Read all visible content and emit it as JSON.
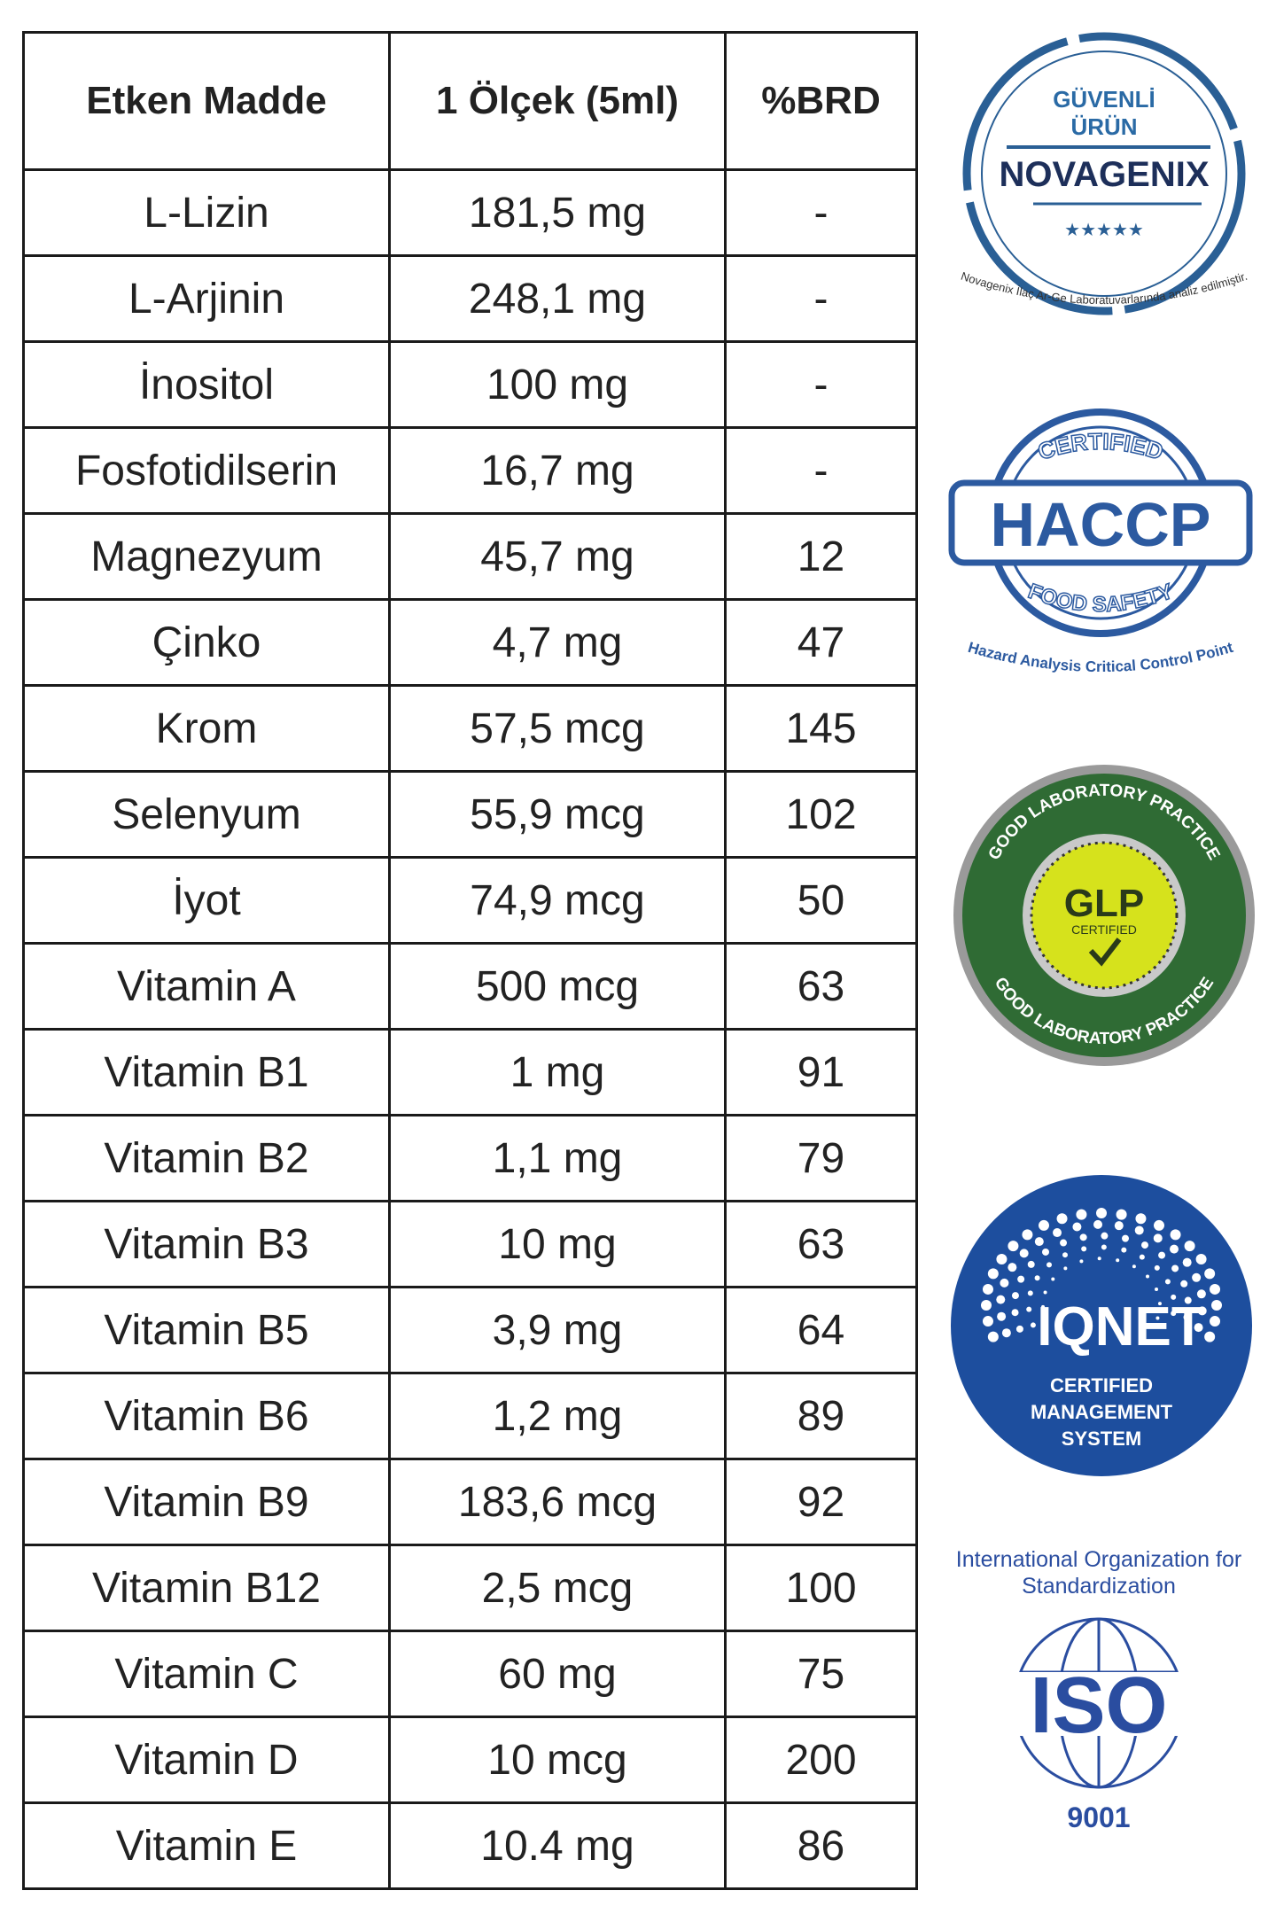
{
  "table": {
    "headers": [
      "Etken Madde",
      "1 Ölçek (5ml)",
      "%BRD"
    ],
    "rows": [
      [
        "L-Lizin",
        "181,5 mg",
        "-"
      ],
      [
        "L-Arjinin",
        "248,1 mg",
        "-"
      ],
      [
        "İnositol",
        "100 mg",
        "-"
      ],
      [
        "Fosfotidilserin",
        "16,7 mg",
        "-"
      ],
      [
        "Magnezyum",
        "45,7 mg",
        "12"
      ],
      [
        "Çinko",
        "4,7 mg",
        "47"
      ],
      [
        "Krom",
        "57,5 mcg",
        "145"
      ],
      [
        "Selenyum",
        "55,9 mcg",
        "102"
      ],
      [
        "İyot",
        "74,9 mcg",
        "50"
      ],
      [
        "Vitamin A",
        "500 mcg",
        "63"
      ],
      [
        "Vitamin B1",
        "1 mg",
        "91"
      ],
      [
        "Vitamin B2",
        "1,1 mg",
        "79"
      ],
      [
        "Vitamin B3",
        "10 mg",
        "63"
      ],
      [
        "Vitamin B5",
        "3,9 mg",
        "64"
      ],
      [
        "Vitamin B6",
        "1,2 mg",
        "89"
      ],
      [
        "Vitamin B9",
        "183,6 mcg",
        "92"
      ],
      [
        "Vitamin B12",
        "2,5 mcg",
        "100"
      ],
      [
        "Vitamin C",
        "60 mg",
        "75"
      ],
      [
        "Vitamin D",
        "10 mcg",
        "200"
      ],
      [
        "Vitamin E",
        "10.4 mg",
        "86"
      ]
    ]
  },
  "logos": {
    "novagenix": {
      "line1": "GÜVENLİ",
      "line2": "ÜRÜN",
      "brand": "NOVAGENIX",
      "stars": "★★★★★",
      "arc": "Novagenix İlaç Ar-Ge Laboratuvarlarında analiz edilmiştir."
    },
    "haccp": {
      "top": "CERTIFIED",
      "main": "HACCP",
      "bottom": "FOOD SAFETY",
      "arc": "Hazard Analysis Critical Control Point"
    },
    "glp": {
      "arc": "GOOD LABORATORY PRACTICE",
      "main": "GLP",
      "sub": "CERTIFIED"
    },
    "iqnet": {
      "main": "IQNET",
      "sub1": "CERTIFIED",
      "sub2": "MANAGEMENT",
      "sub3": "SYSTEM"
    },
    "iso": {
      "arc": "International Organization for Standardization",
      "main": "ISO",
      "number": "9001"
    }
  },
  "colors": {
    "novagenix": "#2a5f95",
    "haccp": "#2c5aa0",
    "glp_green": "#2f6b34",
    "glp_yellow": "#d6e21c",
    "iqnet": "#1d4e9e",
    "iso": "#2a4da0"
  }
}
